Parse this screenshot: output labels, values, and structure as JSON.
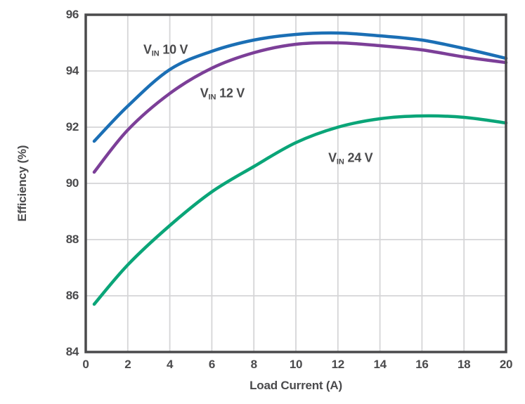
{
  "chart_data": {
    "type": "line",
    "title": "",
    "xlabel": "Load Current (A)",
    "ylabel": "Efficiency (%)",
    "xlim": [
      0,
      20
    ],
    "ylim": [
      84,
      96
    ],
    "x_ticks": [
      0,
      2,
      4,
      6,
      8,
      10,
      12,
      14,
      16,
      18,
      20
    ],
    "y_ticks": [
      84,
      86,
      88,
      90,
      92,
      94,
      96
    ],
    "grid": true,
    "legend_position": "inline-curve-labels",
    "x": [
      0.4,
      2,
      4,
      6,
      8,
      10,
      12,
      14,
      16,
      18,
      20
    ],
    "series": [
      {
        "name": "VIN 10 V",
        "label_pre": "V",
        "label_sub": "IN",
        "label_rest": "10 V",
        "color": "#1b6fb5",
        "values": [
          91.5,
          92.75,
          94.05,
          94.7,
          95.1,
          95.3,
          95.35,
          95.25,
          95.1,
          94.8,
          94.45
        ],
        "label_pos": {
          "x": 3.8,
          "y": 94.75
        }
      },
      {
        "name": "VIN 12 V",
        "label_pre": "V",
        "label_sub": "IN",
        "label_rest": "12 V",
        "color": "#7c3f98",
        "values": [
          90.4,
          91.9,
          93.2,
          94.1,
          94.65,
          94.95,
          95.0,
          94.9,
          94.75,
          94.5,
          94.3
        ],
        "label_pos": {
          "x": 6.5,
          "y": 93.2
        }
      },
      {
        "name": "VIN 24 V",
        "label_pre": "V",
        "label_sub": "IN",
        "label_rest": "24 V",
        "color": "#0aa578",
        "values": [
          85.7,
          87.1,
          88.5,
          89.7,
          90.6,
          91.45,
          92.0,
          92.3,
          92.4,
          92.35,
          92.15
        ],
        "label_pos": {
          "x": 12.6,
          "y": 90.9
        }
      }
    ],
    "colors": {
      "axis_frame": "#4a4a4c",
      "gridline": "#d5d5d7",
      "text": "#4a4a4c",
      "background": "#ffffff"
    }
  }
}
